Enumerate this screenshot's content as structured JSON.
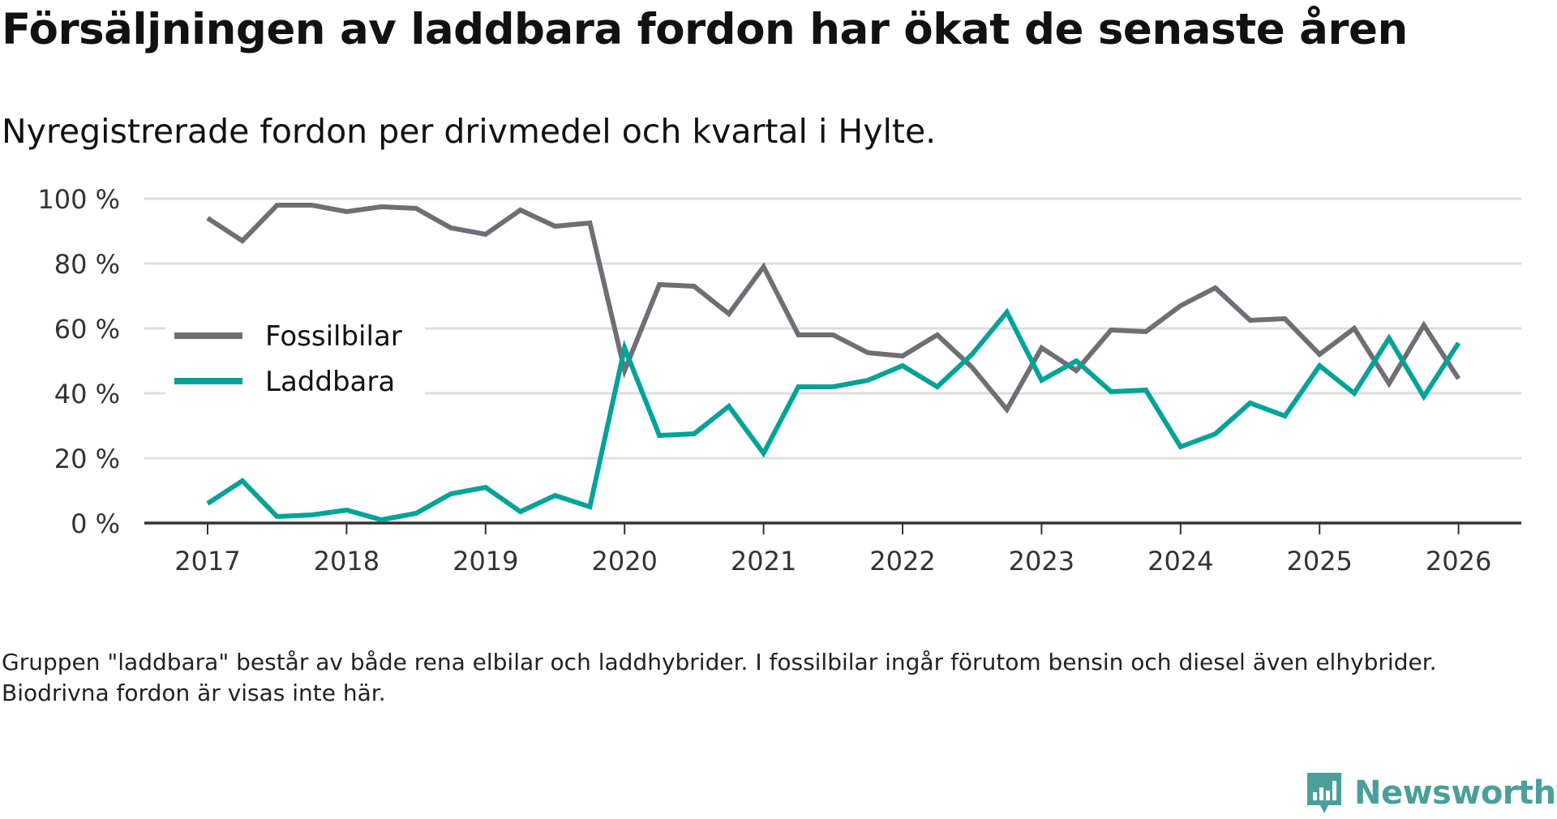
{
  "chart_data": {
    "type": "line",
    "title": "Försäljningen av laddbara fordon har ökat de senaste åren",
    "subtitle": "Nyregistrerade fordon per drivmedel och kvartal i Hylte.",
    "xlabel": "",
    "ylabel": "",
    "x_start_year": 2017,
    "x_step": 0.25,
    "xticks": [
      "2017",
      "2018",
      "2019",
      "2020",
      "2021",
      "2022",
      "2023",
      "2024",
      "2025",
      "2026"
    ],
    "yticks": [
      "0 %",
      "20 %",
      "40 %",
      "60 %",
      "80 %",
      "100 %"
    ],
    "ylim": [
      0,
      100
    ],
    "grid": true,
    "legend_position": "center-left",
    "series": [
      {
        "name": "Fossilbilar",
        "color": "#6f6e75",
        "values": [
          94,
          87,
          98,
          98,
          96,
          97.5,
          97,
          91,
          89,
          96.5,
          91.5,
          92.5,
          47,
          73.5,
          73,
          64.5,
          79,
          58,
          58,
          52.5,
          51.5,
          58,
          48,
          35,
          54,
          47,
          59.5,
          59,
          67,
          72.5,
          62.5,
          63,
          52,
          60,
          43,
          61,
          44.5
        ]
      },
      {
        "name": "Laddbara",
        "color": "#00a398",
        "values": [
          6,
          13,
          2,
          2.5,
          4,
          1,
          3,
          9,
          11,
          3.5,
          8.5,
          5,
          54,
          27,
          27.5,
          36,
          21.5,
          42,
          42,
          44,
          48.5,
          42,
          52,
          65,
          44,
          50,
          40.5,
          41,
          23.5,
          27.5,
          37,
          33,
          48.5,
          40,
          57,
          39,
          55.5
        ]
      }
    ]
  },
  "footnote": "Gruppen \"laddbara\" består av både rena elbilar och laddhybrider. I fossilbilar ingår förutom bensin och diesel även elhybrider. Biodrivna fordon är visas inte här.",
  "logo": {
    "text": "Newsworthy",
    "color": "#4a9f9a"
  }
}
